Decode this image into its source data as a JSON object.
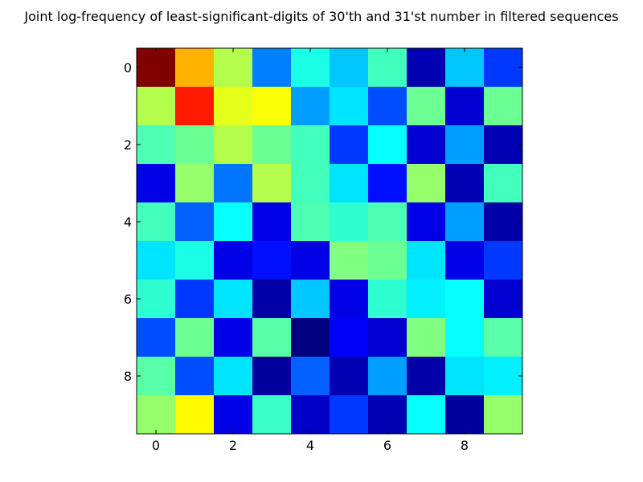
{
  "chart_data": {
    "type": "heatmap",
    "title": "Joint log-frequency of least-significant-digits of 30'th and 31'st number in filtered sequences",
    "xlabel": "",
    "ylabel": "",
    "x_ticks": [
      "0",
      "2",
      "4",
      "6",
      "8"
    ],
    "y_ticks": [
      "0",
      "2",
      "4",
      "6",
      "8"
    ],
    "rows": 10,
    "cols": 10,
    "colormap": "jet",
    "grid": false,
    "legend": "none",
    "values": [
      [
        1.0,
        0.7,
        0.55,
        0.25,
        0.4,
        0.32,
        0.44,
        0.05,
        0.32,
        0.18
      ],
      [
        0.55,
        0.85,
        0.6,
        0.62,
        0.28,
        0.35,
        0.2,
        0.48,
        0.08,
        0.48
      ],
      [
        0.45,
        0.48,
        0.55,
        0.48,
        0.44,
        0.18,
        0.38,
        0.08,
        0.28,
        0.05
      ],
      [
        0.1,
        0.52,
        0.24,
        0.55,
        0.44,
        0.35,
        0.14,
        0.52,
        0.05,
        0.44
      ],
      [
        0.44,
        0.22,
        0.38,
        0.1,
        0.45,
        0.42,
        0.45,
        0.1,
        0.28,
        0.04
      ],
      [
        0.35,
        0.4,
        0.1,
        0.14,
        0.1,
        0.5,
        0.48,
        0.35,
        0.1,
        0.18
      ],
      [
        0.42,
        0.18,
        0.35,
        0.04,
        0.32,
        0.1,
        0.42,
        0.36,
        0.38,
        0.08
      ],
      [
        0.2,
        0.48,
        0.1,
        0.46,
        0.0,
        0.12,
        0.08,
        0.5,
        0.38,
        0.46
      ],
      [
        0.46,
        0.2,
        0.35,
        0.03,
        0.22,
        0.05,
        0.28,
        0.04,
        0.35,
        0.36
      ],
      [
        0.52,
        0.63,
        0.1,
        0.43,
        0.07,
        0.18,
        0.05,
        0.38,
        0.03,
        0.52
      ]
    ]
  }
}
